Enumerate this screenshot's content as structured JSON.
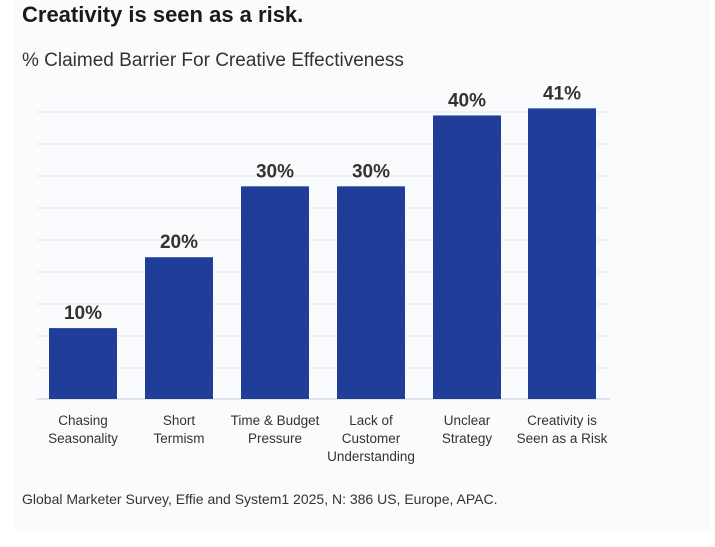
{
  "header": {
    "title": "Creativity is seen as a risk.",
    "subtitle": "% Claimed Barrier For Creative Effectiveness"
  },
  "footer": {
    "source": "Global Marketer Survey, Effie and System1 2025, N: 386 US, Europe, APAC."
  },
  "colors": {
    "bar": "#1f3d99",
    "grid": "#e3e7ef",
    "axis": "#c8cdd6",
    "text": "#333333"
  },
  "chart_data": {
    "type": "bar",
    "title": "Creativity is seen as a risk.",
    "subtitle": "% Claimed Barrier For Creative Effectiveness",
    "xlabel": "",
    "ylabel": "",
    "ylim": [
      0,
      45
    ],
    "grid": true,
    "categories": [
      [
        "Chasing",
        "Seasonality"
      ],
      [
        "Short",
        "Termism"
      ],
      [
        "Time & Budget",
        "Pressure"
      ],
      [
        "Lack of",
        "Customer",
        "Understanding"
      ],
      [
        "Unclear",
        "Strategy"
      ],
      [
        "Creativity is",
        "Seen as a Risk"
      ]
    ],
    "values": [
      10,
      20,
      30,
      30,
      40,
      41
    ],
    "value_labels": [
      "10%",
      "20%",
      "30%",
      "30%",
      "40%",
      "41%"
    ]
  }
}
